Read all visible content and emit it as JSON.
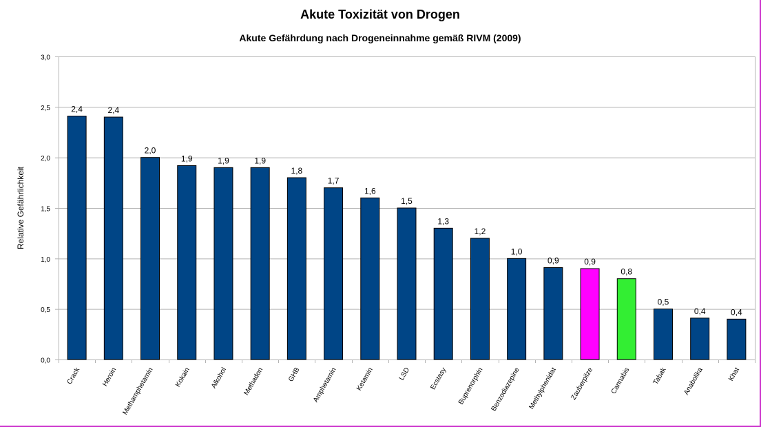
{
  "chart_data": {
    "type": "bar",
    "title": "Akute Toxizität von Drogen",
    "subtitle": "Akute Gefährdung nach Drogeneinnahme gemäß RIVM (2009)",
    "xlabel": "",
    "ylabel": "Relative Gefährlichkeit",
    "ylim": [
      0,
      3.0
    ],
    "yticks": [
      "0,0",
      "0,5",
      "1,0",
      "1,5",
      "2,0",
      "2,5",
      "3,0"
    ],
    "grid": true,
    "categories": [
      "Crack",
      "Heroin",
      "Methamphetamin",
      "Kokain",
      "Alkohol",
      "Methadon",
      "GHB",
      "Amphetamin",
      "Ketamin",
      "LSD",
      "Ecstasy",
      "Buprenorphin",
      "Benzodiazepine",
      "Methylphenidat",
      "Zauberpilze",
      "Cannabis",
      "Tabak",
      "Anabolika",
      "Khat"
    ],
    "values": [
      2.41,
      2.4,
      2.0,
      1.92,
      1.9,
      1.9,
      1.8,
      1.7,
      1.6,
      1.5,
      1.3,
      1.2,
      1.0,
      0.91,
      0.9,
      0.8,
      0.5,
      0.41,
      0.4
    ],
    "data_labels": [
      "2,4",
      "2,4",
      "2,0",
      "1,9",
      "1,9",
      "1,9",
      "1,8",
      "1,7",
      "1,6",
      "1,5",
      "1,3",
      "1,2",
      "1,0",
      "0,9",
      "0,9",
      "0,8",
      "0,5",
      "0,4",
      "0,4"
    ],
    "colors": [
      "#004586",
      "#004586",
      "#004586",
      "#004586",
      "#004586",
      "#004586",
      "#004586",
      "#004586",
      "#004586",
      "#004586",
      "#004586",
      "#004586",
      "#004586",
      "#004586",
      "#ff00ff",
      "#33ee33",
      "#004586",
      "#004586",
      "#004586"
    ]
  }
}
